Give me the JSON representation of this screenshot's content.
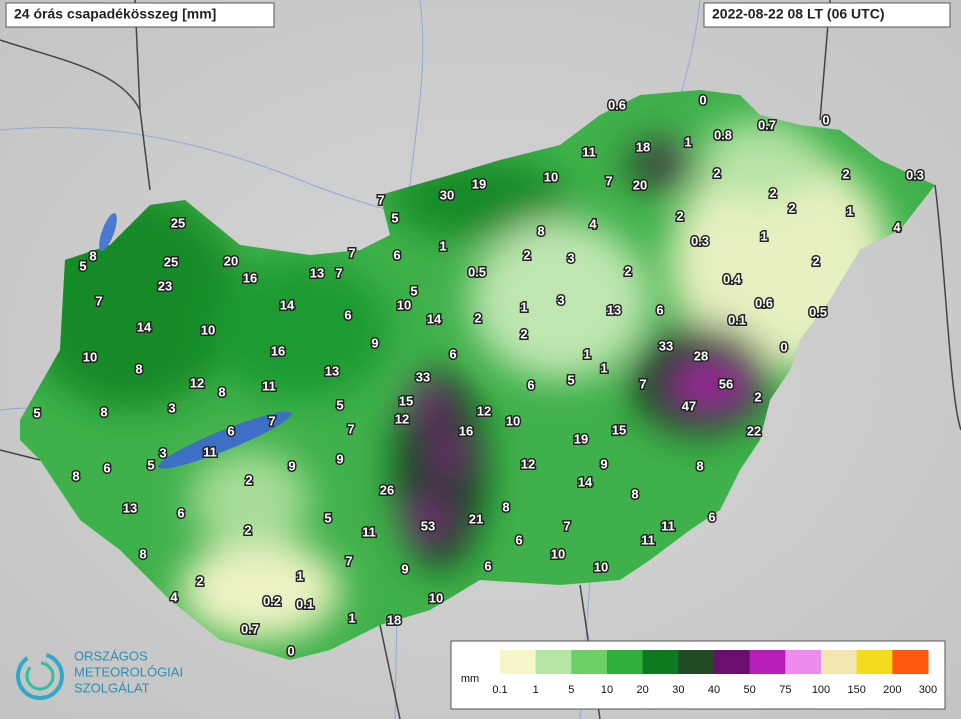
{
  "header": {
    "title": "24 órás csapadékösszeg [mm]",
    "timestamp": "2022-08-22 08 LT (06 UTC)"
  },
  "logo": {
    "lines": [
      "ORSZÁGOS",
      "METEOROLÓGIAI",
      "SZOLGÁLAT"
    ]
  },
  "legend": {
    "unit": "mm",
    "labels": [
      0.1,
      1,
      5,
      10,
      20,
      30,
      40,
      50,
      75,
      100,
      150,
      200,
      300
    ],
    "colors": [
      "#f6f6c8",
      "#b6e6a6",
      "#6ccf68",
      "#2fae3a",
      "#0d7a22",
      "#1f4a22",
      "#6a0f6e",
      "#b81eb8",
      "#ee8cee",
      "#f4e6b0",
      "#f3dc1e",
      "#ff5a10"
    ]
  },
  "stations": {
    "values": [
      0.6,
      0,
      18,
      1,
      0.8,
      0.7,
      0,
      11,
      10,
      7,
      20,
      2,
      2,
      2,
      0.3,
      19,
      30,
      7,
      5,
      8,
      4,
      2,
      2,
      1,
      4,
      25,
      1,
      2,
      3,
      0.3,
      1,
      2,
      8,
      5,
      25,
      20,
      7,
      6,
      2,
      0.4,
      23,
      16,
      13,
      7,
      0.5,
      7,
      14,
      5,
      10,
      1,
      3,
      0.6,
      0.5,
      14,
      10,
      6,
      14,
      2,
      13,
      6,
      0.1,
      10,
      16,
      9,
      2,
      33,
      28,
      0,
      8,
      13,
      6,
      1,
      1,
      12,
      8,
      11,
      33,
      6,
      5,
      7,
      56,
      5,
      8,
      3,
      5,
      15,
      12,
      47,
      2,
      7,
      6,
      12,
      7,
      10,
      16,
      15,
      22,
      3,
      11,
      19,
      5,
      8,
      6,
      9,
      9,
      12,
      9,
      8,
      2,
      26,
      14,
      8,
      13,
      6,
      5,
      8,
      21,
      53,
      6,
      2,
      11,
      7,
      11,
      6,
      11,
      8,
      7,
      10,
      9,
      6,
      10,
      1,
      2,
      4,
      0.2,
      0.1,
      10,
      1,
      18,
      0.7,
      0
    ]
  }
}
